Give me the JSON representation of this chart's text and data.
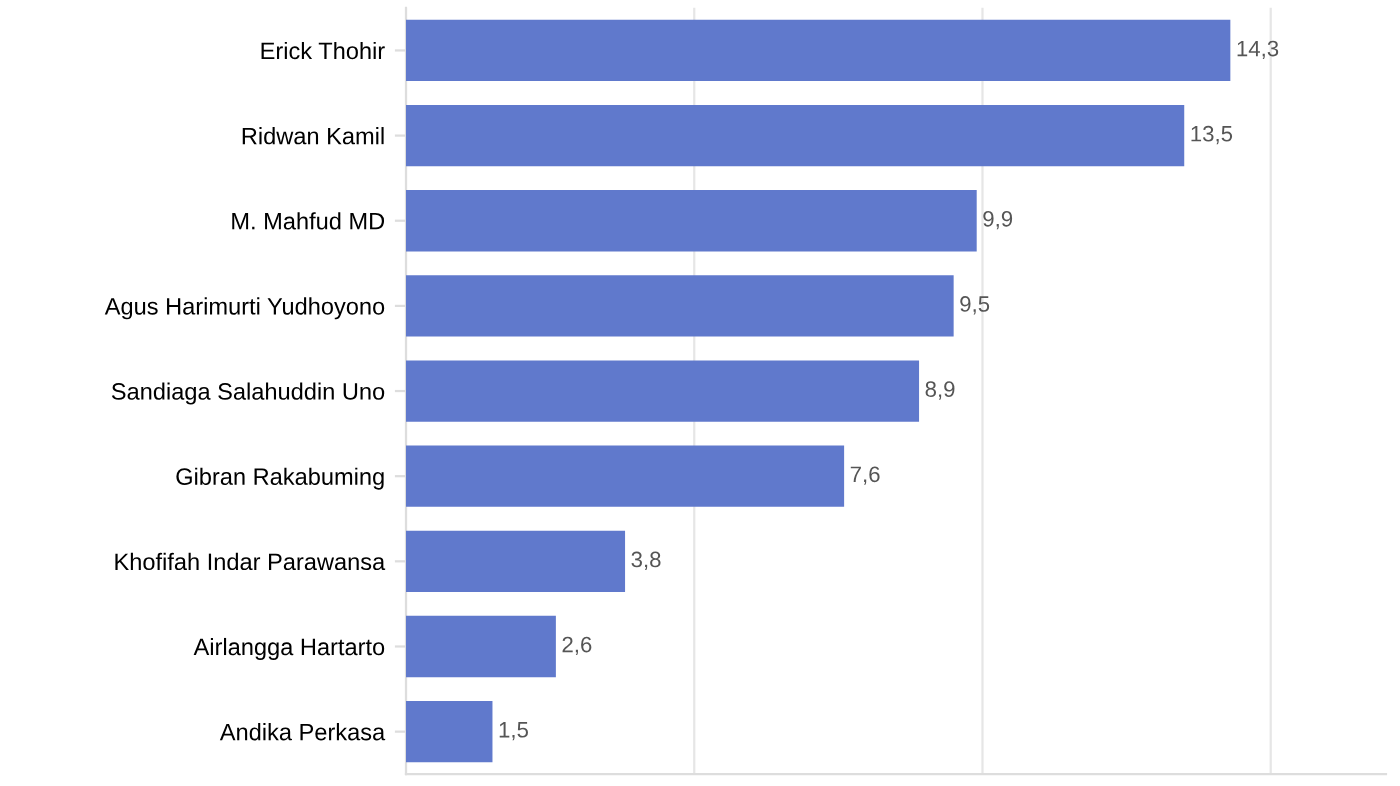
{
  "chart_data": {
    "type": "bar",
    "orientation": "horizontal",
    "categories": [
      "Erick Thohir",
      "Ridwan Kamil",
      "M. Mahfud MD",
      "Agus Harimurti Yudhoyono",
      "Sandiaga Salahuddin Uno",
      "Gibran Rakabuming",
      "Khofifah Indar Parawansa",
      "Airlangga Hartarto",
      "Andika Perkasa"
    ],
    "values": [
      14.3,
      13.5,
      9.9,
      9.5,
      8.9,
      7.6,
      3.8,
      2.6,
      1.5
    ],
    "value_labels": [
      "14,3",
      "13,5",
      "9,9",
      "9,5",
      "8,9",
      "7,6",
      "3,8",
      "2,6",
      "1,5"
    ],
    "color": "#6079cc",
    "xlim": [
      0,
      17
    ],
    "xticks": [
      {
        "value": 0,
        "label": null
      },
      {
        "value": 5,
        "label": null
      },
      {
        "value": 10,
        "label": null
      },
      {
        "value": 15,
        "label": null
      }
    ],
    "tick_labels": "y",
    "grid": "x"
  }
}
